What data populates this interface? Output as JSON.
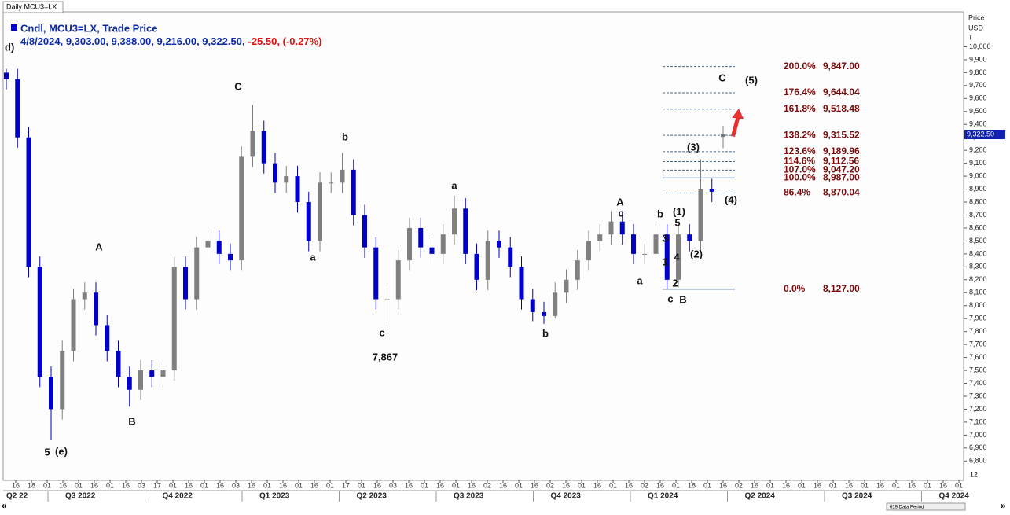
{
  "chart_data": {
    "type": "candlestick",
    "top_label": "Daily MCU3=LX",
    "title": "Cndl, MCU3=LX, Trade Price",
    "subtitle": "4/8/2024, 9,303.00, 9,388.00, 9,216.00, 9,322.50,",
    "change_label": "-25.50, (-0.27%)",
    "axis_title": [
      "Price",
      "USD",
      "T"
    ],
    "last_label": "9,322.50",
    "data_period": "619 Data Period",
    "corner_label": "12",
    "up_color": "#808080",
    "down_color": "#0000c8",
    "candles": {
      "open": [
        9800,
        9750,
        9300,
        8300,
        7450,
        7200,
        7650,
        8050,
        8100,
        7850,
        7650,
        7450,
        7350,
        7500,
        7450,
        7500,
        8300,
        8050,
        8450,
        8500,
        8400,
        8350,
        9150,
        9350,
        9100,
        8950,
        9000,
        8800,
        8500,
        8950,
        8950,
        9050,
        8700,
        8450,
        8050,
        8050,
        8350,
        8600,
        8450,
        8400,
        8550,
        8750,
        8400,
        8200,
        8500,
        8450,
        8300,
        8050,
        7950,
        7920,
        8100,
        8200,
        8350,
        8500,
        8550,
        8650,
        8550,
        8400,
        8400,
        8550,
        8200,
        8550,
        8500,
        8900,
        9303
      ],
      "high": [
        9830,
        9830,
        9380,
        8380,
        7530,
        7730,
        8130,
        8180,
        8180,
        7930,
        7730,
        7530,
        7580,
        7580,
        7580,
        8380,
        8380,
        8530,
        8580,
        8580,
        8480,
        9230,
        9550,
        9430,
        9180,
        9080,
        9080,
        8880,
        9030,
        9030,
        9180,
        9130,
        8780,
        8530,
        8130,
        8430,
        8680,
        8680,
        8530,
        8630,
        8850,
        8830,
        8480,
        8580,
        8580,
        8530,
        8380,
        8130,
        8030,
        8180,
        8280,
        8430,
        8580,
        8630,
        8730,
        8730,
        8630,
        8480,
        8630,
        8630,
        8630,
        8630,
        9130,
        8980,
        9388
      ],
      "low": [
        9670,
        9220,
        8220,
        7370,
        6960,
        7120,
        7570,
        7970,
        7770,
        7570,
        7370,
        7220,
        7270,
        7370,
        7370,
        7420,
        7970,
        7970,
        8370,
        8320,
        8270,
        8270,
        9070,
        9020,
        8870,
        8870,
        8720,
        8420,
        8420,
        8870,
        8870,
        8620,
        8370,
        7970,
        7867,
        7970,
        8270,
        8370,
        8320,
        8320,
        8470,
        8320,
        8120,
        8120,
        8370,
        8220,
        7970,
        7880,
        7860,
        7900,
        8020,
        8120,
        8270,
        8420,
        8470,
        8470,
        8320,
        8320,
        8320,
        8127,
        8140,
        8420,
        8420,
        8800,
        9216
      ],
      "close": [
        9750,
        9300,
        8300,
        7450,
        7200,
        7650,
        8050,
        8100,
        7850,
        7650,
        7450,
        7350,
        7500,
        7450,
        7500,
        8300,
        8050,
        8450,
        8500,
        8400,
        8350,
        9150,
        9350,
        9100,
        8950,
        9000,
        8800,
        8500,
        8950,
        8950,
        9050,
        8700,
        8450,
        8050,
        8050,
        8350,
        8600,
        8450,
        8400,
        8550,
        8750,
        8400,
        8200,
        8500,
        8450,
        8300,
        8050,
        7950,
        7920,
        8100,
        8200,
        8350,
        8500,
        8550,
        8650,
        8550,
        8400,
        8400,
        8550,
        8200,
        8550,
        8500,
        8900,
        8880,
        9322.5
      ]
    },
    "ylim": [
      6650,
      10270
    ],
    "yticks": [
      {
        "value": 6800,
        "label": "6,800"
      },
      {
        "value": 6900,
        "label": "6,900"
      },
      {
        "value": 7000,
        "label": "7,000"
      },
      {
        "value": 7100,
        "label": "7,100"
      },
      {
        "value": 7200,
        "label": "7,200"
      },
      {
        "value": 7300,
        "label": "7,300"
      },
      {
        "value": 7400,
        "label": "7,400"
      },
      {
        "value": 7500,
        "label": "7,500"
      },
      {
        "value": 7600,
        "label": "7,600"
      },
      {
        "value": 7700,
        "label": "7,700"
      },
      {
        "value": 7800,
        "label": "7,800"
      },
      {
        "value": 7900,
        "label": "7,900"
      },
      {
        "value": 8000,
        "label": "8,000"
      },
      {
        "value": 8100,
        "label": "8,100"
      },
      {
        "value": 8200,
        "label": "8,200"
      },
      {
        "value": 8300,
        "label": "8,300"
      },
      {
        "value": 8400,
        "label": "8,400"
      },
      {
        "value": 8500,
        "label": "8,500"
      },
      {
        "value": 8600,
        "label": "8,600"
      },
      {
        "value": 8700,
        "label": "8,700"
      },
      {
        "value": 8800,
        "label": "8,800"
      },
      {
        "value": 8900,
        "label": "8,900"
      },
      {
        "value": 9000,
        "label": "9,000"
      },
      {
        "value": 9100,
        "label": "9,100"
      },
      {
        "value": 9200,
        "label": "9,200"
      },
      {
        "value": 9300,
        "label": "9,300"
      },
      {
        "value": 9400,
        "label": "9,400"
      },
      {
        "value": 9500,
        "label": "9,500"
      },
      {
        "value": 9600,
        "label": "9,600"
      },
      {
        "value": 9700,
        "label": "9,700"
      },
      {
        "value": 9800,
        "label": "9,800"
      },
      {
        "value": 9900,
        "label": "9,900"
      },
      {
        "value": 10000,
        "label": "10,000"
      }
    ],
    "xtick_labels": [
      "16",
      "18",
      "01",
      "16",
      "01",
      "16",
      "01",
      "16",
      "03",
      "17",
      "01",
      "16",
      "01",
      "16",
      "03",
      "16",
      "01",
      "16",
      "01",
      "16",
      "01",
      "17",
      "01",
      "16",
      "03",
      "16",
      "01",
      "16",
      "01",
      "16",
      "02",
      "16",
      "01",
      "16",
      "02",
      "16",
      "01",
      "16",
      "01",
      "16",
      "02",
      "16",
      "01",
      "18",
      "01",
      "16",
      "02",
      "16",
      "01",
      "16",
      "01",
      "16",
      "01",
      "16",
      "01",
      "16",
      "01",
      "16",
      "01",
      "16",
      "01"
    ],
    "quarter_labels": [
      "Q2 22",
      "Q3 2022",
      "Q4 2022",
      "Q1 2023",
      "Q2 2023",
      "Q3 2023",
      "Q4 2023",
      "Q1 2024",
      "Q2 2024",
      "Q3 2024",
      "Q4 2024"
    ],
    "fib": {
      "percents": [
        "200.0%",
        "176.4%",
        "161.8%",
        "138.2%",
        "123.6%",
        "114.6%",
        "107.0%",
        "100.0%",
        "86.4%",
        "0.0%"
      ],
      "levels": [
        9847,
        9644.04,
        9518.48,
        9315.52,
        9189.96,
        9112.56,
        9047.2,
        8987,
        8870.04,
        8127
      ],
      "value_labels": [
        "9,847.00",
        "9,644.04",
        "9,518.48",
        "9,315.52",
        "9,189.96",
        "9,112.56",
        "9,047.20",
        "8,987.00",
        "8,870.04",
        "8,127.00"
      ]
    },
    "annotations": [
      "d)",
      "A",
      "5",
      "(e)",
      "B",
      "C",
      "b",
      "a",
      "c",
      "7,867",
      "a",
      "b",
      "A",
      "c",
      "a",
      "b",
      "(1)",
      "5",
      "3",
      "1",
      "4",
      "(2)",
      "2",
      "c",
      "B",
      "(3)",
      "(4)",
      "C",
      "(5)"
    ]
  }
}
